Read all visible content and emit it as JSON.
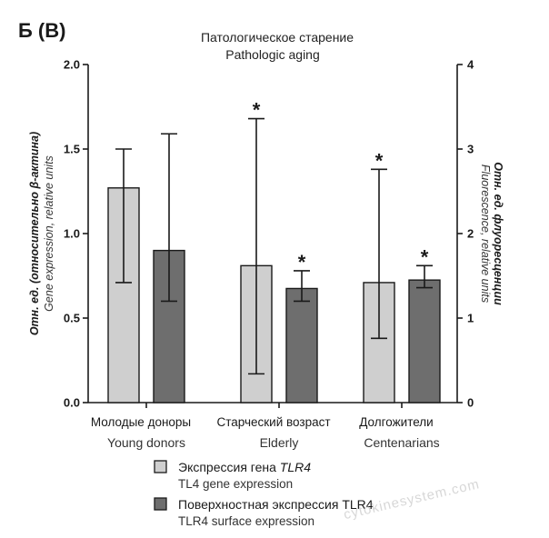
{
  "panel_label": "Б (В)",
  "title_ru": "Патологическое старение",
  "title_en": "Pathologic aging",
  "watermark": "cytokinesystem.com",
  "chart_data": {
    "type": "bar",
    "categories": [
      {
        "ru": "Молодые доноры",
        "en": "Young donors"
      },
      {
        "ru": "Старческий возраст",
        "en": "Elderly"
      },
      {
        "ru": "Долгожители",
        "en": "Centenarians"
      }
    ],
    "left_axis": {
      "label_ru": "Отн. ед. (относительно β-актина)",
      "label_en": "Gene expression, relative units",
      "ylim": [
        0,
        2.0
      ],
      "ticks": [
        "0.0",
        "0.5",
        "1.0",
        "1.5",
        "2.0"
      ]
    },
    "right_axis": {
      "label_ru": "Отн. ед. флуоресценции",
      "label_en": "Fluorescence, relative units",
      "ylim": [
        0,
        4
      ],
      "ticks": [
        "0",
        "1",
        "2",
        "3",
        "4"
      ]
    },
    "series": [
      {
        "name_ru": "Экспрессия гена",
        "name_ru_italic": "TLR4",
        "name_en": "TL4 gene expression",
        "axis": "left",
        "color": "#cfcfcf",
        "values": [
          1.27,
          0.81,
          0.71
        ],
        "err_low": [
          0.71,
          0.17,
          0.38
        ],
        "err_high": [
          1.5,
          1.68,
          1.38
        ],
        "significant": [
          false,
          true,
          true
        ]
      },
      {
        "name_ru": "Поверхностная экспрессия TLR4",
        "name_ru_italic": "",
        "name_en": "TLR4 surface expression",
        "axis": "right",
        "color": "#6e6e6e",
        "values": [
          1.8,
          1.35,
          1.45
        ],
        "err_low": [
          1.2,
          1.2,
          1.36
        ],
        "err_high": [
          3.18,
          1.56,
          1.62
        ],
        "significant": [
          false,
          true,
          true
        ]
      }
    ],
    "grid": false,
    "legend_position": "bottom"
  }
}
